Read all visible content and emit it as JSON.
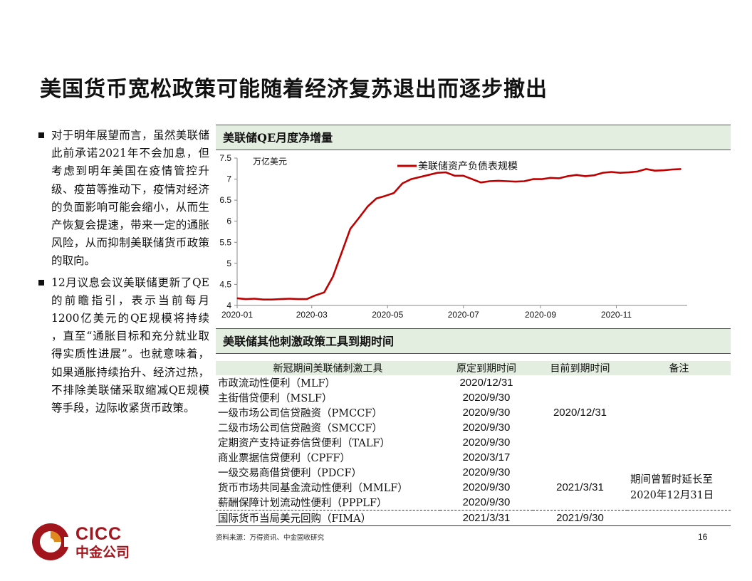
{
  "page": {
    "title": "美国货币宽松政策可能随着经济复苏退出而逐步撤出",
    "page_number": "16",
    "source": "资料来源：万得资讯、中金固收研究",
    "logo_text": "CICC",
    "logo_cn": "中金公司"
  },
  "bullets": [
    "对于明年展望而言，虽然美联储此前承诺2021年不会加息，但考虑到明年美国在疫情管控升级、疫苗等推动下，疫情对经济的负面影响可能会缩小，从而生产恢复会提速，带来一定的通胀风险，从而抑制美联储货币政策的取向。",
    "12月议息会议美联储更新了QE的前瞻指引，表示当前每月1200亿美元的QE规模将持续 ，直至“通胀目标和充分就业取得实质性进展”。也就意味着，如果通胀持续抬升、经济过热，不排除美联储采取缩减QE规模等手段，边际收紧货币政策。"
  ],
  "chart_panel_title": "美联储QE月度净增量",
  "chart_data": {
    "type": "line",
    "unit_label": "万亿美元",
    "x": [
      "2020-01-01",
      "2020-01-08",
      "2020-01-15",
      "2020-01-22",
      "2020-01-29",
      "2020-02-05",
      "2020-02-12",
      "2020-02-19",
      "2020-02-26",
      "2020-03-04",
      "2020-03-11",
      "2020-03-18",
      "2020-03-25",
      "2020-04-01",
      "2020-04-08",
      "2020-04-15",
      "2020-04-22",
      "2020-04-29",
      "2020-05-06",
      "2020-05-13",
      "2020-05-20",
      "2020-05-27",
      "2020-06-03",
      "2020-06-10",
      "2020-06-17",
      "2020-06-24",
      "2020-07-01",
      "2020-07-08",
      "2020-07-15",
      "2020-07-22",
      "2020-07-29",
      "2020-08-05",
      "2020-08-12",
      "2020-08-19",
      "2020-08-26",
      "2020-09-02",
      "2020-09-09",
      "2020-09-16",
      "2020-09-23",
      "2020-09-30",
      "2020-10-07",
      "2020-10-14",
      "2020-10-21",
      "2020-10-28",
      "2020-11-04",
      "2020-11-11",
      "2020-11-18",
      "2020-11-25",
      "2020-12-02",
      "2020-12-09",
      "2020-12-16",
      "2020-12-23"
    ],
    "series": [
      {
        "name": "美联储资产负债表规模",
        "color": "#c00000",
        "values": [
          4.17,
          4.15,
          4.16,
          4.14,
          4.14,
          4.15,
          4.16,
          4.15,
          4.15,
          4.24,
          4.31,
          4.68,
          5.25,
          5.82,
          6.08,
          6.35,
          6.54,
          6.6,
          6.67,
          6.9,
          7.0,
          7.05,
          7.1,
          7.15,
          7.16,
          7.08,
          7.08,
          7.0,
          6.92,
          6.95,
          6.96,
          6.95,
          6.94,
          6.95,
          7.0,
          7.0,
          7.03,
          7.02,
          7.07,
          7.1,
          7.07,
          7.09,
          7.15,
          7.17,
          7.15,
          7.16,
          7.18,
          7.24,
          7.2,
          7.21,
          7.23,
          7.24
        ]
      }
    ],
    "x_ticks": [
      "2020-01",
      "2020-03",
      "2020-05",
      "2020-07",
      "2020-09",
      "2020-11"
    ],
    "y_ticks": [
      "4",
      "4.5",
      "5",
      "5.5",
      "6",
      "6.5",
      "7",
      "7.5"
    ],
    "ylim": [
      4,
      7.5
    ],
    "xlim": [
      "2020-01-01",
      "2020-12-28"
    ],
    "legend_position": "top-right",
    "grid": false
  },
  "table_panel_title": "美联储其他刺激政策工具到期时间",
  "table": {
    "headers": [
      "新冠期间美联储刺激工具",
      "原定到期时间",
      "目前到期时间",
      "备注"
    ],
    "rows": [
      {
        "tool": "市政流动性便利（MLF）",
        "orig": "2020/12/31"
      },
      {
        "tool": "主街借贷便利（MSLF）",
        "orig": "2020/9/30"
      },
      {
        "tool": "一级市场公司信贷融资（PMCCF）",
        "orig": "2020/9/30"
      },
      {
        "tool": "二级市场公司信贷融资（SMCCF）",
        "orig": "2020/9/30"
      },
      {
        "tool": "定期资产支持证券信贷便利（TALF）",
        "orig": "2020/9/30"
      },
      {
        "tool": "商业票据信贷便利（CPFF）",
        "orig": "2020/3/17"
      },
      {
        "tool": "一级交易商借贷便利（PDCF）",
        "orig": "2020/9/30"
      },
      {
        "tool": "货币市场共同基金流动性便利（MMLF）",
        "orig": "2020/9/30"
      },
      {
        "tool": "薪酬保障计划流动性便利（PPPLF）",
        "orig": "2020/9/30"
      },
      {
        "tool": "国际货币当局美元回购（FIMA）",
        "orig": "2021/3/31"
      }
    ],
    "current_group_a": "2020/12/31",
    "current_group_b": "2021/3/31",
    "current_fima": "2021/9/30",
    "note": "期间曾暂时延长至2020年12月31日"
  },
  "colors": {
    "brand": "#a3151c",
    "header_bg": "#e3eee0",
    "line": "#c00000"
  }
}
